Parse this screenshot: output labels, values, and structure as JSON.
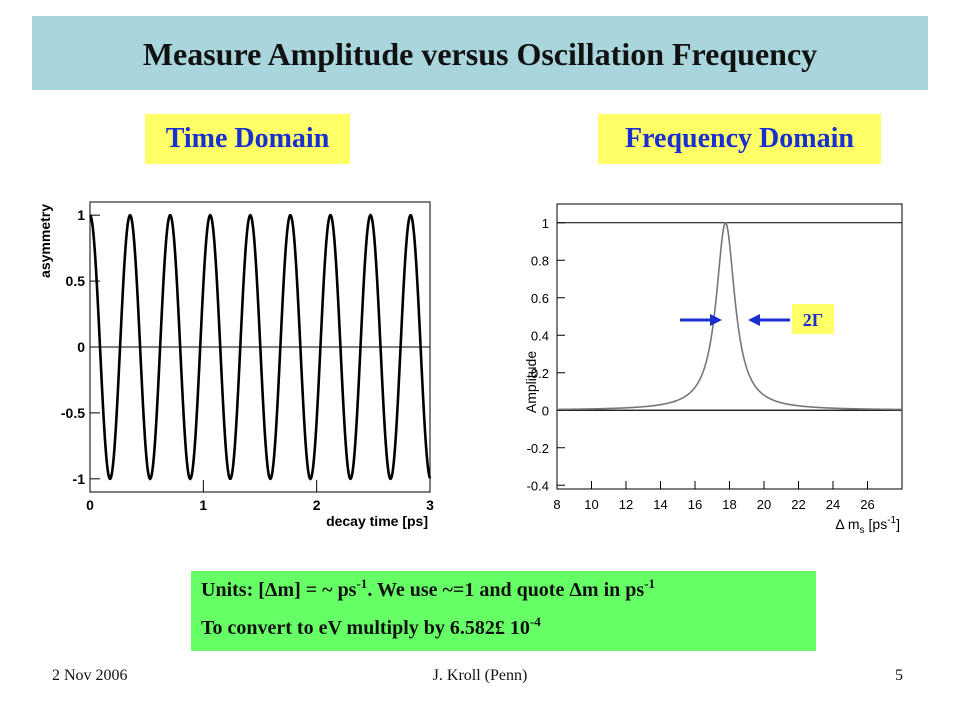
{
  "slide": {
    "title": "Measure Amplitude versus Oscillation Frequency",
    "time_label": "Time Domain",
    "freq_label": "Frequency Domain",
    "footer_date": "2 Nov 2006",
    "footer_author": "J. Kroll (Penn)",
    "page_number": "5",
    "note": {
      "line1_a": "Units: [",
      "delta1": "Δ",
      "line1_b": "m] = ",
      "hbar1": "~",
      "line1_c": " ps",
      "sup1": "-1",
      "line1_d": ". We use ",
      "hbar2": "~",
      "line1_e": "=1 and quote ",
      "delta2": "Δ",
      "line1_f": "m in ps",
      "sup2": "-1",
      "line2_a": "To convert to eV multiply by 6.582",
      "times": "£",
      "line2_b": " 10",
      "sup3": "-4"
    },
    "colors": {
      "title_bg": "#a9d6dc",
      "label_bg": "#ffff66",
      "label_text": "#1a2fd0",
      "note_bg": "#66ff66",
      "arrow": "#1a2fd0"
    }
  },
  "chart_data": [
    {
      "type": "line",
      "title": "",
      "xlabel": "decay time [ps]",
      "ylabel": "asymmetry",
      "xlim": [
        0,
        3
      ],
      "ylim": [
        -1.1,
        1.1
      ],
      "xticks": [
        "0",
        "1",
        "2",
        "3"
      ],
      "yticks": [
        "1",
        "0.5",
        "0",
        "-0.5",
        "-1"
      ],
      "series": [
        {
          "function": "cos(dm * t)",
          "dm": 17.77,
          "samples": 600
        }
      ],
      "reference_line": 0
    },
    {
      "type": "line",
      "title": "",
      "xlabel": "Δ m",
      "xlabel_sub": "s",
      "xlabel_unit": "[ps",
      "xlabel_unit_sup": "-1",
      "xlabel_unit_end": "]",
      "ylabel": "Amplitude",
      "xlim": [
        8,
        28
      ],
      "ylim": [
        -0.42,
        1.1
      ],
      "xticks": [
        "8",
        "10",
        "12",
        "14",
        "16",
        "18",
        "20",
        "22",
        "24",
        "26"
      ],
      "yticks": [
        "1",
        "0.8",
        "0.6",
        "0.4",
        "0.2",
        "0",
        "-0.2",
        "-0.4"
      ],
      "series": [
        {
          "function": "lorentzian",
          "center": 17.77,
          "gamma": 0.66,
          "peak": 1.0,
          "samples": 400
        }
      ],
      "reference_lines": [
        0,
        1
      ],
      "annotation": "2Γ"
    }
  ]
}
